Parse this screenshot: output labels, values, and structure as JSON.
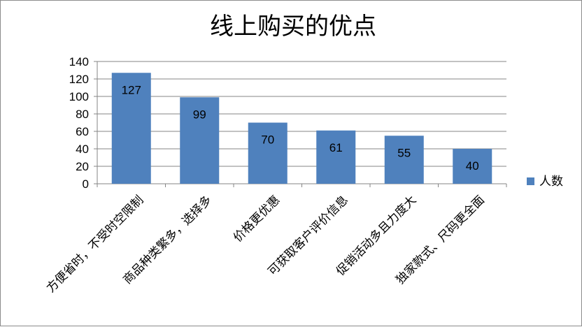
{
  "chart_data": {
    "type": "bar",
    "title": "线上购买的优点",
    "categories": [
      "方便省时，不受时空限制",
      "商品种类繁多，选择多",
      "价格更优惠",
      "可获取客户评价信息",
      "促销活动多且力度大",
      "独家款式、尺码更全面"
    ],
    "series": [
      {
        "name": "人数",
        "values": [
          127,
          99,
          70,
          61,
          55,
          40
        ],
        "color": "#4f81bd"
      }
    ],
    "ylim": [
      0,
      140
    ],
    "y_ticks": [
      0,
      20,
      40,
      60,
      80,
      100,
      120,
      140
    ],
    "grid": true,
    "legend": "right",
    "data_labels": "inside-end"
  }
}
